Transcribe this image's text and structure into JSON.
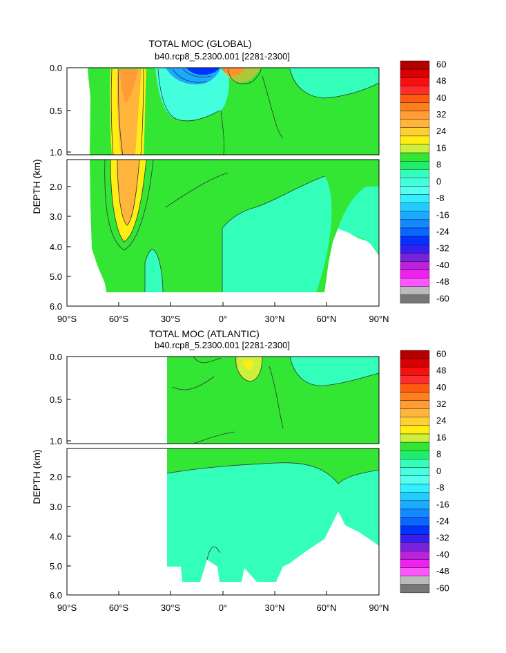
{
  "chart_data": [
    {
      "type": "heatmap",
      "title": "TOTAL MOC (GLOBAL)",
      "subtitle": "b40.rcp8_5.2300.001 [2281-2300]",
      "xlabel": "",
      "ylabel": "DEPTH (km)",
      "x_ticks": [
        "90°S",
        "60°S",
        "30°S",
        "0°",
        "30°N",
        "60°N",
        "90°N"
      ],
      "y_ticks_upper": [
        "0.0",
        "0.5",
        "1.0"
      ],
      "y_ticks_lower": [
        "2.0",
        "3.0",
        "4.0",
        "5.0",
        "6.0"
      ],
      "xlim": [
        -90,
        90
      ],
      "ylim": [
        0,
        6
      ],
      "y_break": 1.0,
      "fields": [
        {
          "name": "",
          "x": [
            -78,
            -44
          ],
          "y": [
            0.0,
            4.1
          ],
          "value": 12
        },
        {
          "name": "",
          "x": [
            -64,
            -48
          ],
          "y": [
            0.0,
            3.6
          ],
          "value": 22
        },
        {
          "name": "",
          "x": [
            -60,
            -53
          ],
          "y": [
            0.0,
            0.6
          ],
          "value": 34
        },
        {
          "name": "",
          "x": [
            -36,
            -1
          ],
          "y": [
            0.0,
            0.55
          ],
          "value": -4
        },
        {
          "name": "",
          "x": [
            -22,
            -5
          ],
          "y": [
            0.0,
            0.09
          ],
          "value": -38
        },
        {
          "name": "",
          "x": [
            2,
            14
          ],
          "y": [
            0.0,
            0.08
          ],
          "value": 30
        },
        {
          "name": "",
          "x": [
            8,
            45
          ],
          "y": [
            1.7,
            5.5
          ],
          "value": -2
        },
        {
          "name": "",
          "x": [
            42,
            90
          ],
          "y": [
            0.05,
            0.45
          ],
          "value": -2
        }
      ],
      "colorbar": {
        "labels": [
          "60",
          "48",
          "40",
          "32",
          "24",
          "16",
          "8",
          "0",
          "-8",
          "-16",
          "-24",
          "-32",
          "-40",
          "-48",
          "-60"
        ],
        "colors": [
          "#b40000",
          "#d80000",
          "#f81010",
          "#ff2d2d",
          "#ff5a0f",
          "#ff7f1c",
          "#ff9c33",
          "#ffb43c",
          "#ffd032",
          "#ffee14",
          "#ccf03c",
          "#33e633",
          "#20ee6a",
          "#33ffbb",
          "#44ffdd",
          "#55ffee",
          "#33eeff",
          "#22ccff",
          "#1aaaff",
          "#1488ff",
          "#0a66ff",
          "#0033ff",
          "#3320ee",
          "#7722dd",
          "#bb22dd",
          "#ee22ee",
          "#ff55ff",
          "#bbbbbb",
          "#777777"
        ]
      }
    },
    {
      "type": "heatmap",
      "title": "TOTAL MOC (ATLANTIC)",
      "subtitle": "b40.rcp8_5.2300.001 [2281-2300]",
      "xlabel": "",
      "ylabel": "DEPTH (km)",
      "x_ticks": [
        "90°S",
        "60°S",
        "30°S",
        "0°",
        "30°N",
        "60°N",
        "90°N"
      ],
      "y_ticks_upper": [
        "0.0",
        "0.5",
        "1.0"
      ],
      "y_ticks_lower": [
        "2.0",
        "3.0",
        "4.0",
        "5.0",
        "6.0"
      ],
      "xlim": [
        -90,
        90
      ],
      "ylim": [
        0,
        6
      ],
      "y_break": 1.0,
      "fields": [
        {
          "name": "",
          "x": [
            -34,
            90
          ],
          "y": [
            0.0,
            1.3
          ],
          "value": 6
        },
        {
          "name": "",
          "x": [
            10,
            24
          ],
          "y": [
            0.0,
            0.35
          ],
          "value": 10
        },
        {
          "name": "",
          "x": [
            -34,
            60
          ],
          "y": [
            1.5,
            5.5
          ],
          "value": -2
        },
        {
          "name": "",
          "x": [
            40,
            90
          ],
          "y": [
            0.05,
            0.4
          ],
          "value": -2
        }
      ],
      "colorbar": {
        "labels": [
          "60",
          "48",
          "40",
          "32",
          "24",
          "16",
          "8",
          "0",
          "-8",
          "-16",
          "-24",
          "-32",
          "-40",
          "-48",
          "-60"
        ],
        "colors": [
          "#b40000",
          "#d80000",
          "#f81010",
          "#ff2d2d",
          "#ff5a0f",
          "#ff7f1c",
          "#ff9c33",
          "#ffb43c",
          "#ffd032",
          "#ffee14",
          "#ccf03c",
          "#33e633",
          "#20ee6a",
          "#33ffbb",
          "#44ffdd",
          "#55ffee",
          "#33eeff",
          "#22ccff",
          "#1aaaff",
          "#1488ff",
          "#0a66ff",
          "#0033ff",
          "#3320ee",
          "#7722dd",
          "#bb22dd",
          "#ee22ee",
          "#ff55ff",
          "#bbbbbb",
          "#777777"
        ]
      }
    }
  ],
  "colors": {
    "positive_main": "#33e633",
    "negative_main": "#33ffbb",
    "land": "#ffffff"
  }
}
